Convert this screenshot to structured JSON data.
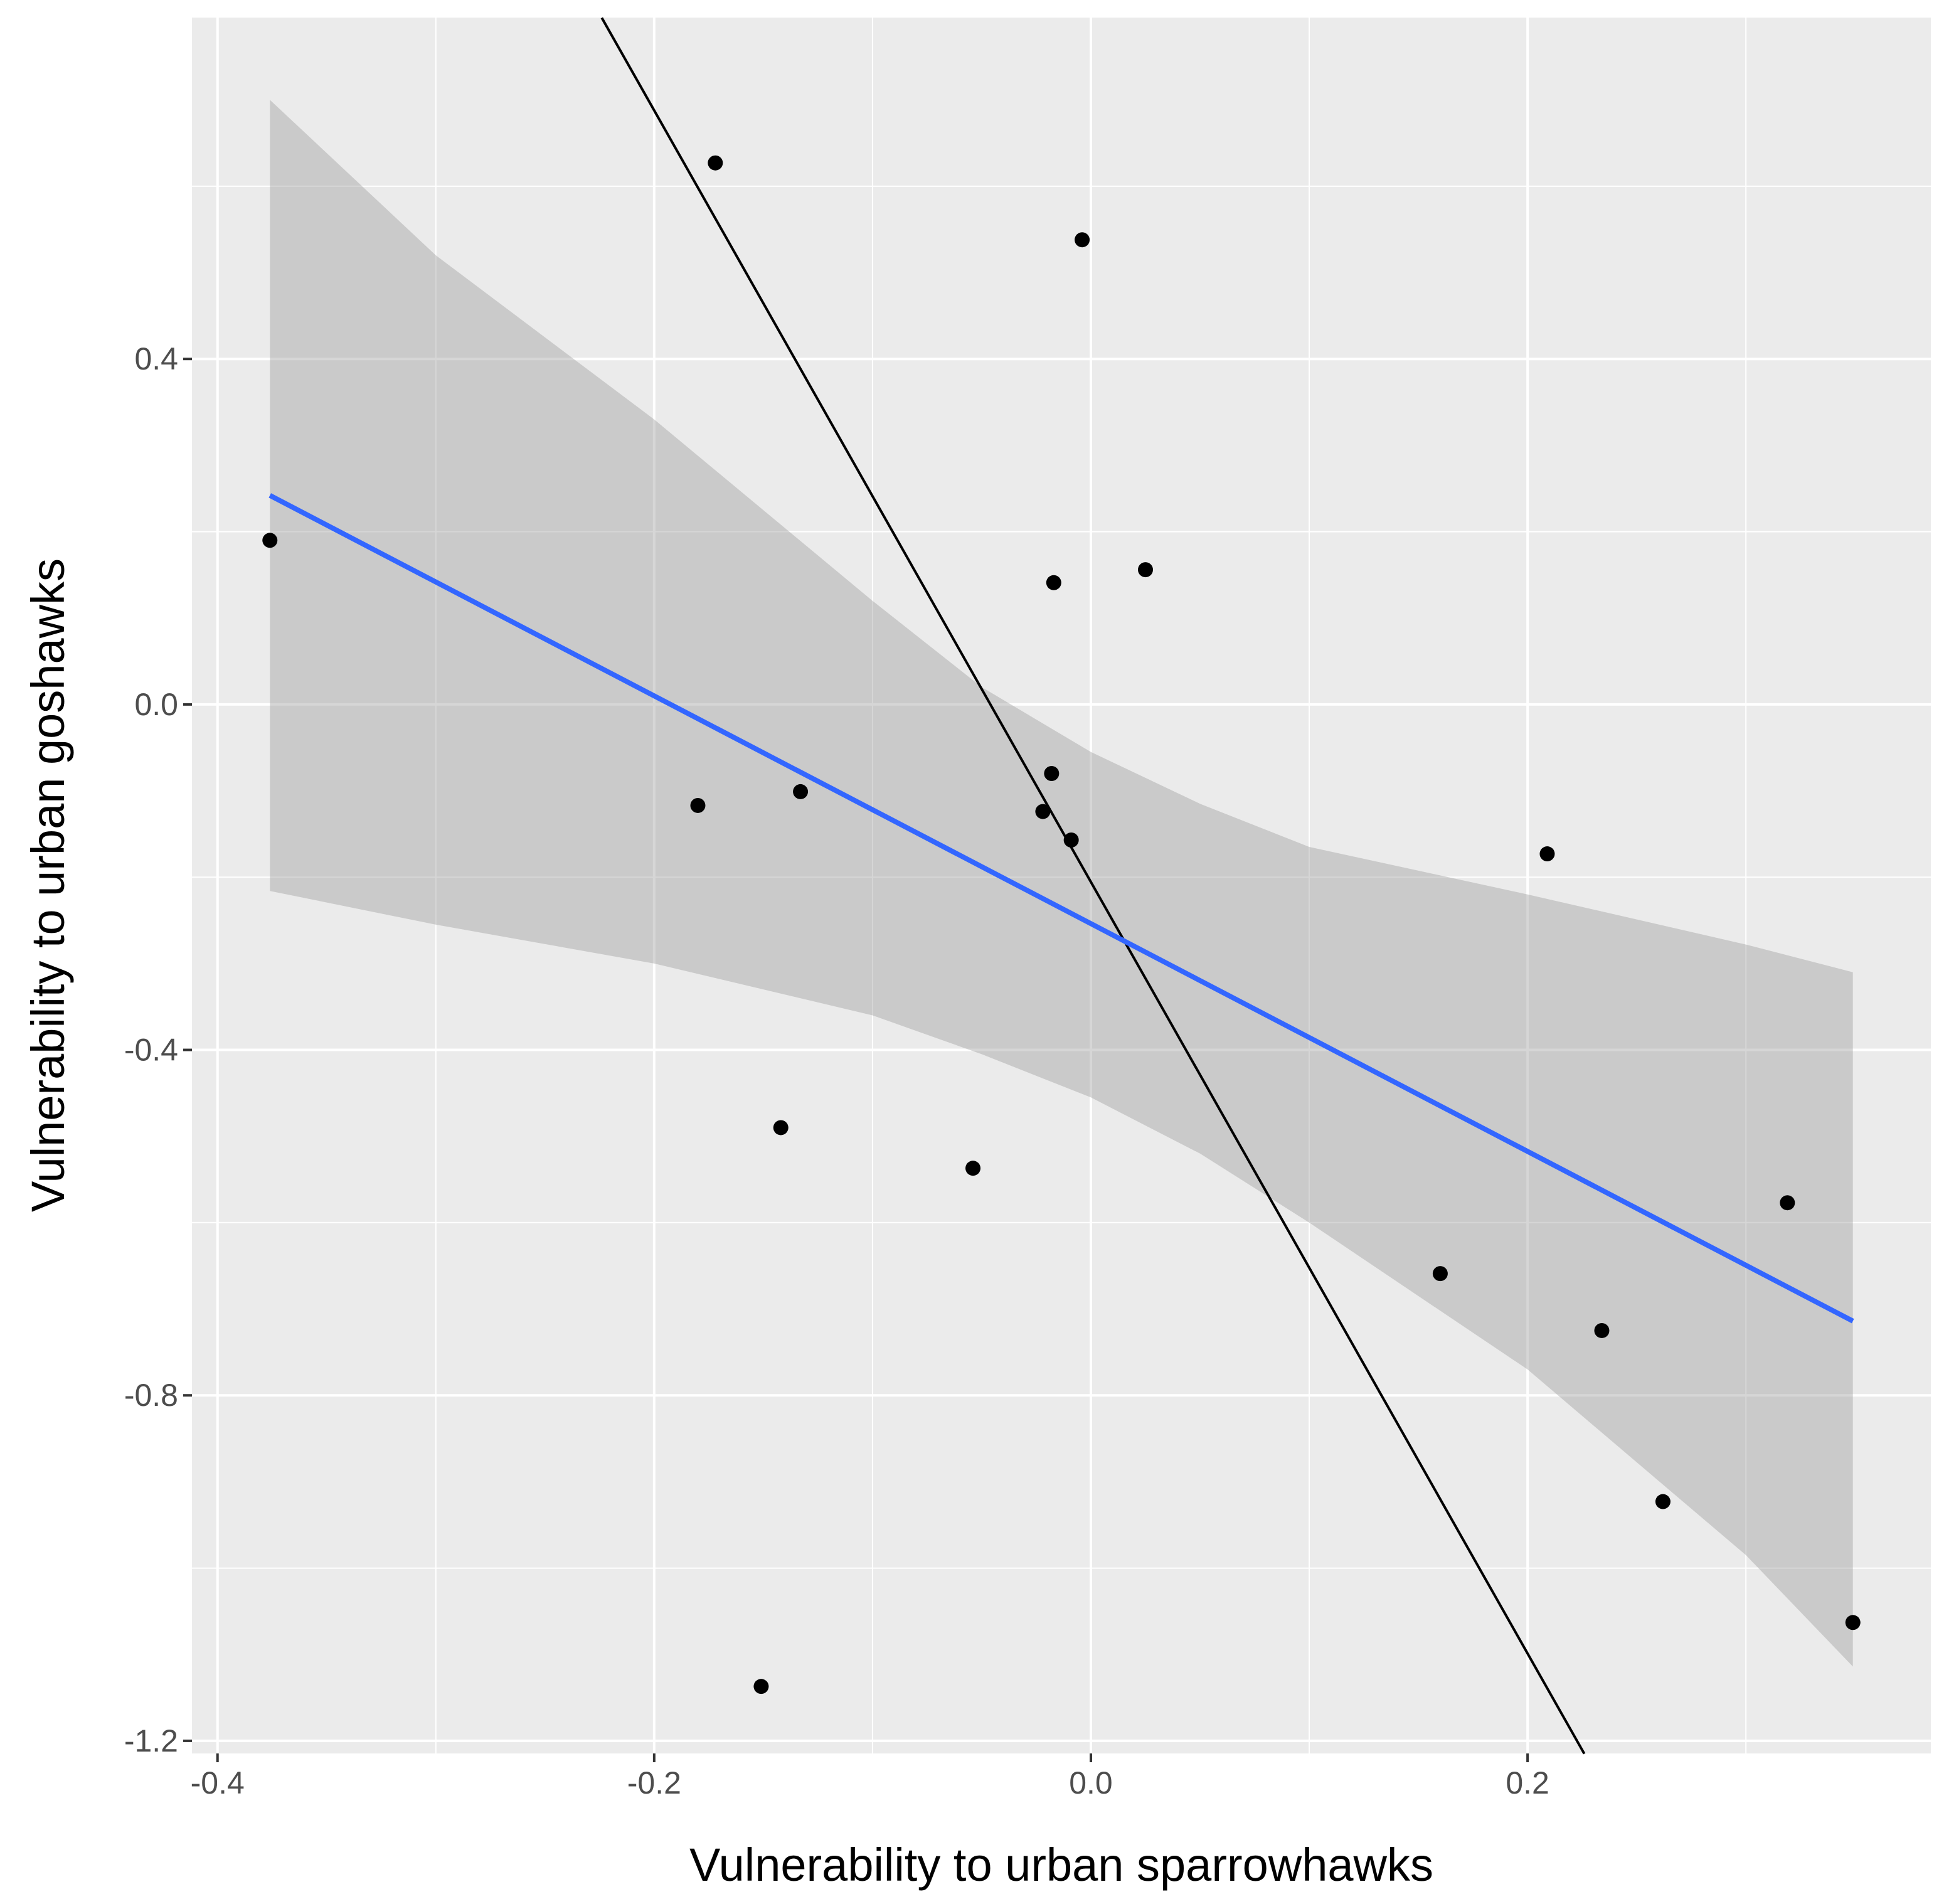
{
  "chart_data": {
    "type": "scatter",
    "title": "",
    "xlabel": "Vulnerability to urban sparrowhawks",
    "ylabel": "Vulnerability to urban goshawks",
    "xlim": [
      -0.4117,
      0.3847
    ],
    "ylim": [
      -1.2146,
      0.7953
    ],
    "x_ticks": [
      -0.4,
      -0.2,
      0.0,
      0.2
    ],
    "x_tick_labels": [
      "-0.4",
      "-0.2",
      "0.0",
      "0.2"
    ],
    "y_ticks": [
      -1.2,
      -0.8,
      -0.4,
      0.0,
      0.4
    ],
    "y_tick_labels": [
      "-1.2",
      "-0.8",
      "-0.4",
      "0.0",
      "0.4"
    ],
    "grid": true,
    "background_color": "#ebebeb",
    "points": {
      "color": "#000000",
      "x": [
        -0.376,
        -0.172,
        -0.004,
        -0.017,
        0.025,
        -0.18,
        -0.133,
        -0.018,
        -0.022,
        -0.009,
        0.209,
        -0.142,
        -0.054,
        0.16,
        0.319,
        0.234,
        0.262,
        0.349,
        -0.151
      ],
      "y": [
        0.19,
        0.627,
        0.538,
        0.141,
        0.156,
        -0.117,
        -0.101,
        -0.08,
        -0.124,
        -0.157,
        -0.173,
        -0.49,
        -0.537,
        -0.659,
        -0.577,
        -0.725,
        -0.923,
        -1.063,
        -1.137
      ]
    },
    "fit_line": {
      "name": "linear fit",
      "color": "#3366ff",
      "x": [
        -0.376,
        0.349
      ],
      "y": [
        0.242,
        -0.714
      ]
    },
    "confidence_band": {
      "color": "#999999",
      "x": [
        -0.376,
        -0.3,
        -0.2,
        -0.1,
        -0.05,
        0.0,
        0.05,
        0.1,
        0.2,
        0.3,
        0.349
      ],
      "upper": [
        0.7,
        0.52,
        0.33,
        0.12,
        0.02,
        -0.055,
        -0.115,
        -0.165,
        -0.22,
        -0.278,
        -0.31
      ],
      "lower": [
        -0.216,
        -0.255,
        -0.3,
        -0.36,
        -0.405,
        -0.455,
        -0.52,
        -0.6,
        -0.77,
        -0.985,
        -1.114
      ]
    },
    "reference_line": {
      "name": "reference line",
      "color": "#000000",
      "x": [
        -0.224,
        0.226
      ],
      "y": [
        0.795,
        -1.215
      ]
    }
  }
}
